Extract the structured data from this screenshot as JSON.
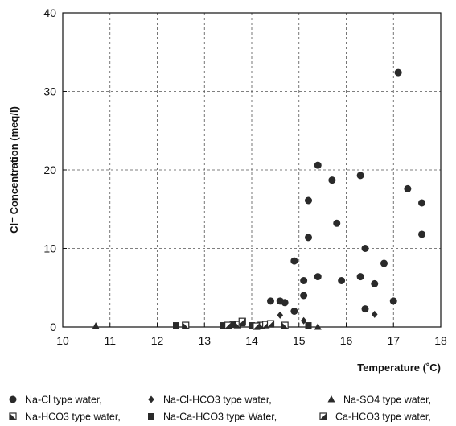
{
  "chart_data": {
    "type": "scatter",
    "xlabel": "Temperature (˚C)",
    "ylabel": "Cl⁻ Concentration (meq/l)",
    "xlim": [
      10,
      18
    ],
    "ylim": [
      0,
      40
    ],
    "xticks": [
      10,
      11,
      12,
      13,
      14,
      15,
      16,
      17,
      18
    ],
    "yticks": [
      0,
      10,
      20,
      30,
      40
    ],
    "grid": true,
    "legend_position": "bottom",
    "series": [
      {
        "name": "Na-Cl type water,",
        "marker": "circle",
        "points": [
          [
            14.4,
            3.3
          ],
          [
            14.6,
            3.3
          ],
          [
            14.7,
            3.1
          ],
          [
            14.9,
            2.0
          ],
          [
            14.9,
            8.4
          ],
          [
            15.1,
            4.0
          ],
          [
            15.1,
            5.9
          ],
          [
            15.2,
            11.4
          ],
          [
            15.2,
            16.1
          ],
          [
            15.4,
            6.4
          ],
          [
            15.4,
            20.6
          ],
          [
            15.7,
            18.7
          ],
          [
            15.8,
            13.2
          ],
          [
            15.9,
            5.9
          ],
          [
            16.3,
            6.4
          ],
          [
            16.3,
            19.3
          ],
          [
            16.4,
            10.0
          ],
          [
            16.4,
            2.3
          ],
          [
            16.6,
            5.5
          ],
          [
            16.8,
            8.1
          ],
          [
            17.0,
            3.3
          ],
          [
            17.1,
            32.4
          ],
          [
            17.3,
            17.6
          ],
          [
            17.6,
            15.8
          ],
          [
            17.6,
            11.8
          ]
        ]
      },
      {
        "name": "Na-Cl-HCO3 type water,",
        "marker": "diamond",
        "points": [
          [
            14.6,
            1.5
          ],
          [
            15.1,
            0.8
          ],
          [
            16.6,
            1.6
          ]
        ]
      },
      {
        "name": "Na-SO4 type water,",
        "marker": "triangle",
        "points": [
          [
            10.7,
            0.1
          ],
          [
            15.4,
            0.0
          ]
        ]
      },
      {
        "name": "Na-HCO3 type water,",
        "marker": "square-half",
        "points": [
          [
            12.6,
            0.2
          ],
          [
            13.7,
            0.3
          ],
          [
            14.2,
            0.2
          ],
          [
            14.7,
            0.2
          ]
        ]
      },
      {
        "name": "Na-Ca-HCO3 type Water,",
        "marker": "square",
        "points": [
          [
            12.4,
            0.2
          ],
          [
            13.4,
            0.2
          ],
          [
            13.6,
            0.3
          ],
          [
            13.8,
            0.5
          ],
          [
            14.0,
            0.2
          ],
          [
            15.2,
            0.2
          ]
        ]
      },
      {
        "name": "Ca-HCO3 type water,",
        "marker": "square-diag",
        "points": [
          [
            13.5,
            0.2
          ],
          [
            13.8,
            0.7
          ],
          [
            14.1,
            0.1
          ],
          [
            14.3,
            0.3
          ],
          [
            14.4,
            0.4
          ]
        ]
      }
    ]
  }
}
